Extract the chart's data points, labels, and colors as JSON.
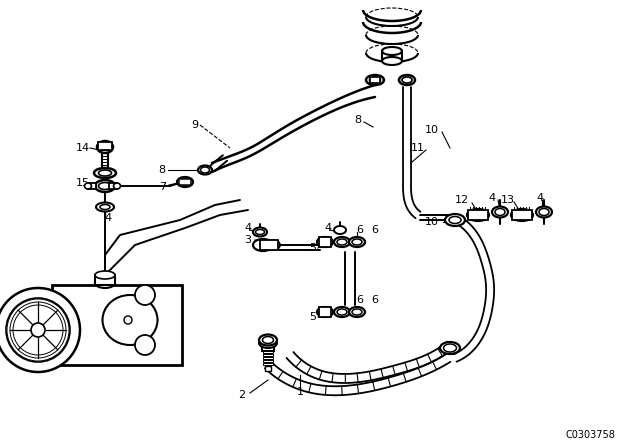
{
  "bg_color": "#ffffff",
  "line_color": "#000000",
  "diagram_code": "C0303758",
  "lw_hose": 2.2,
  "lw_pipe": 1.4,
  "lw_part": 1.6,
  "font_size": 8
}
